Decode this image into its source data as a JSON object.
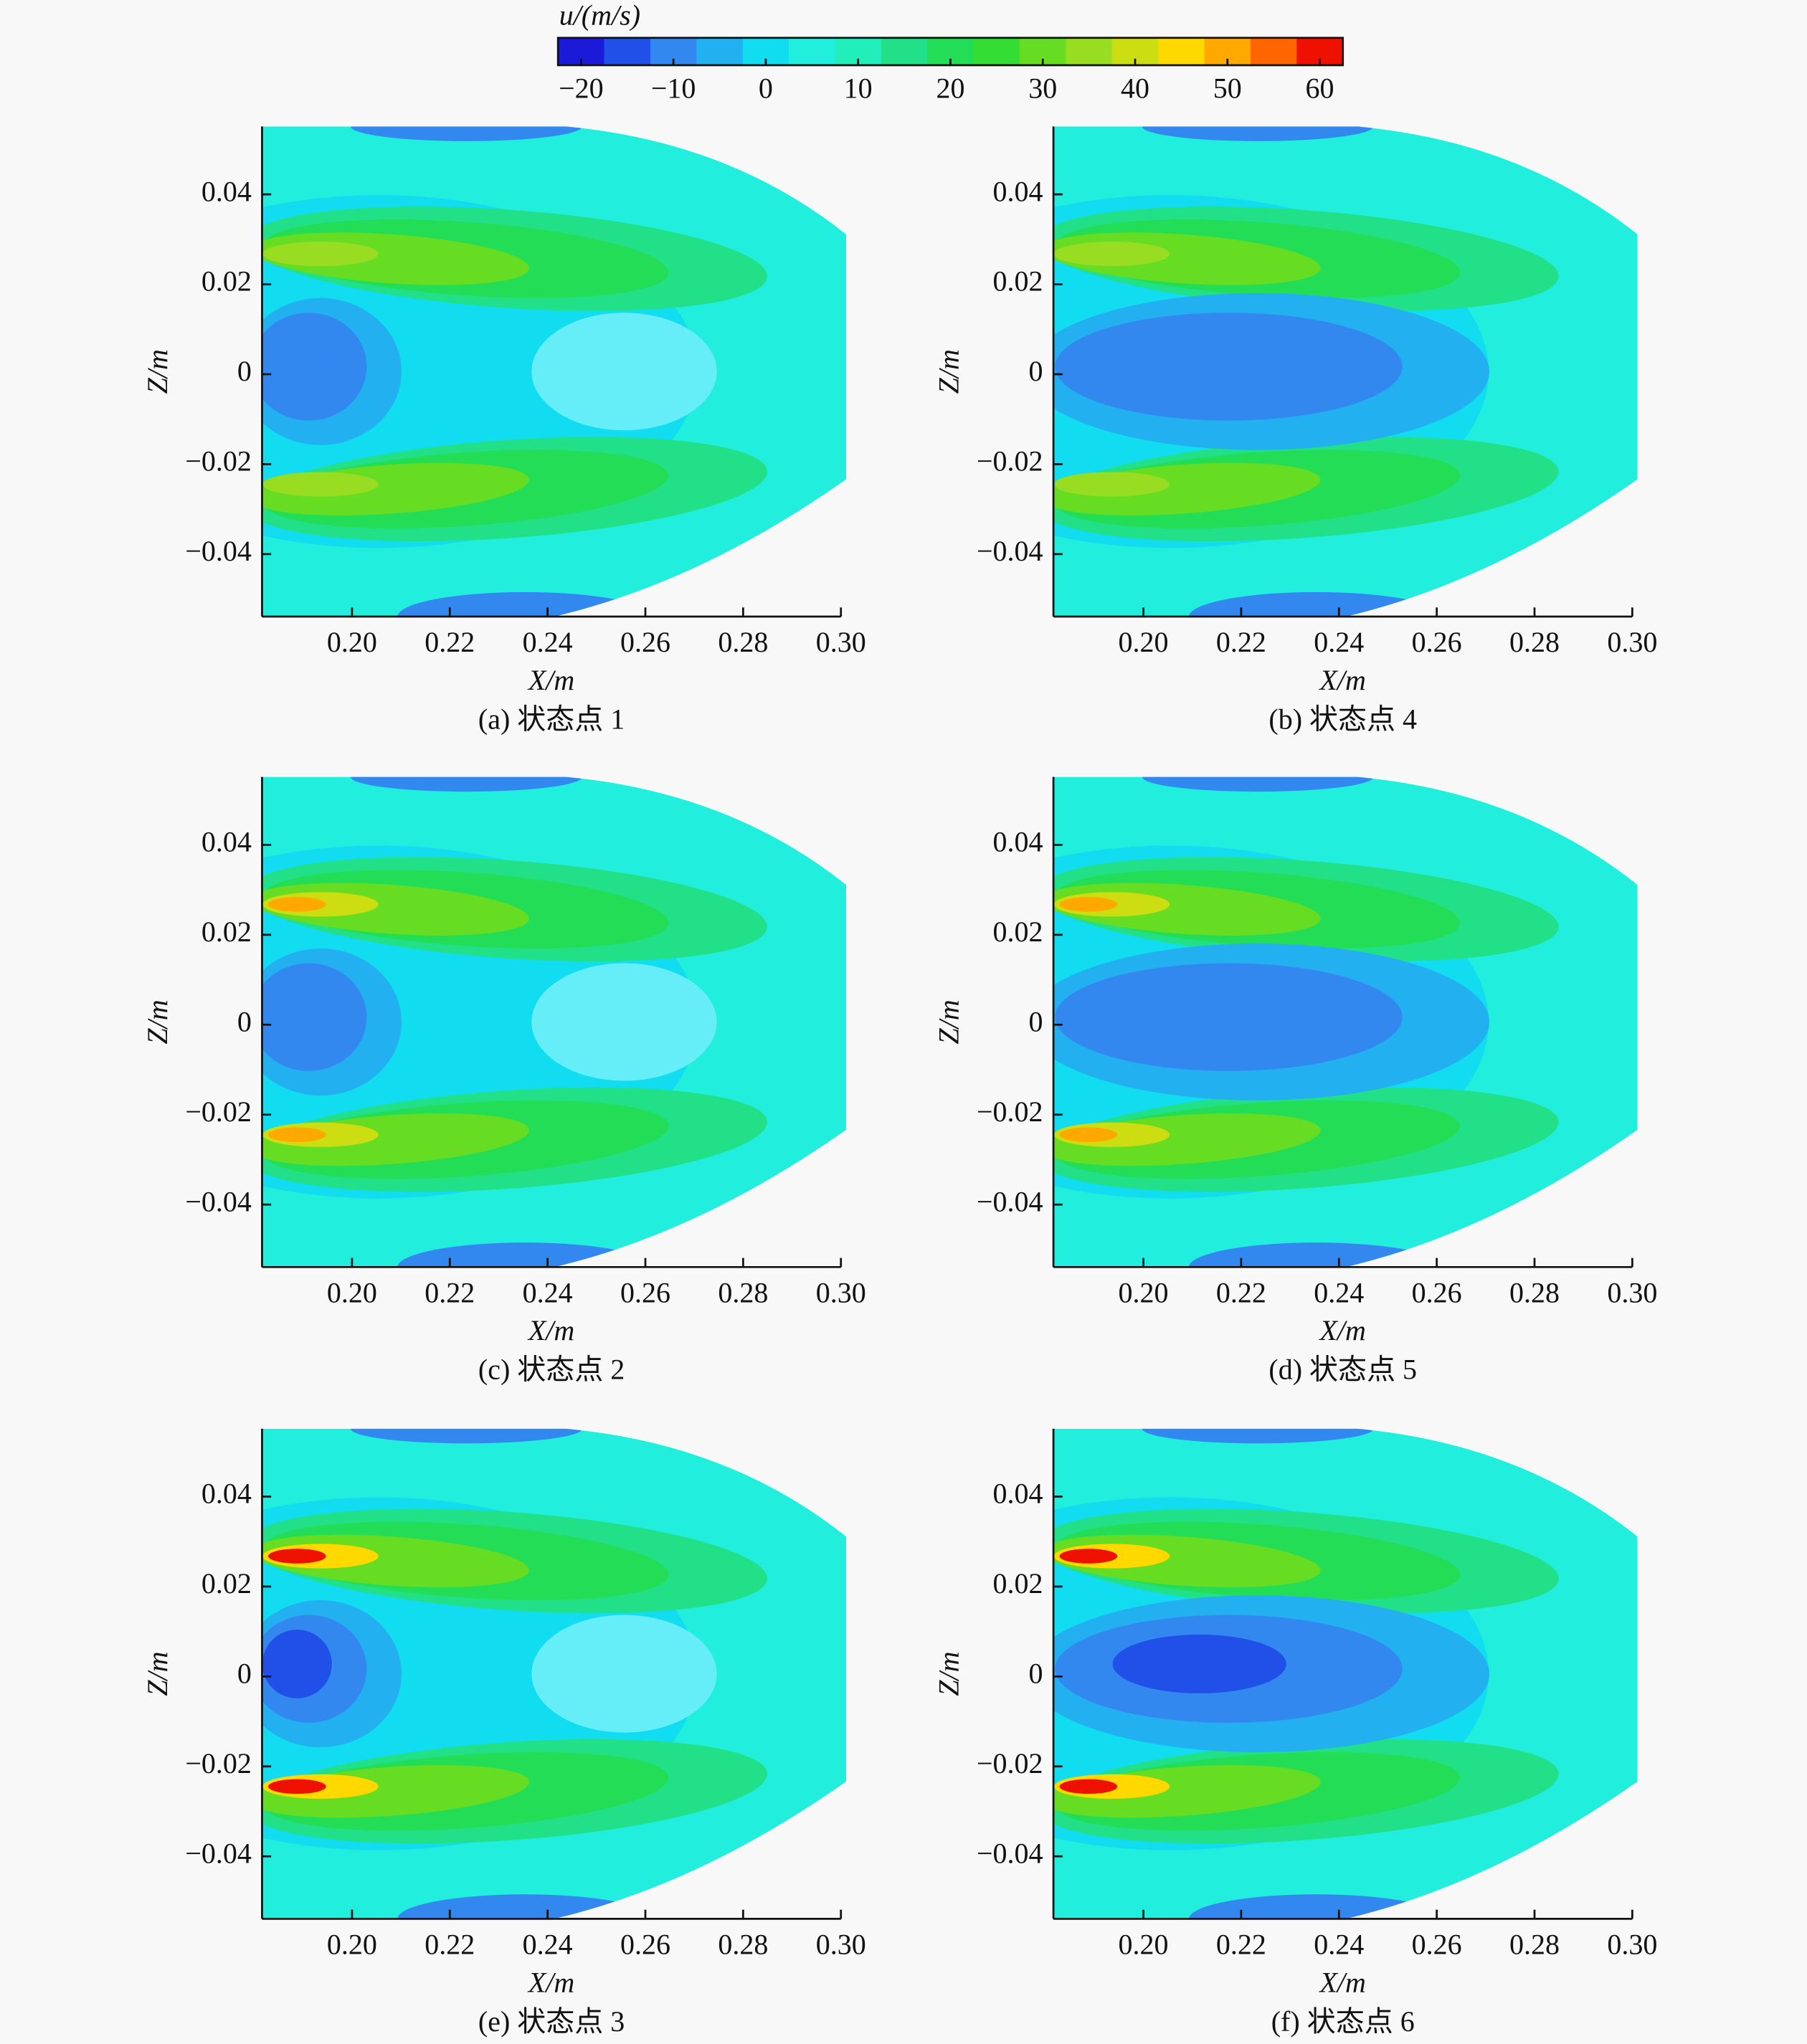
{
  "colorbar": {
    "label": "u/(m/s)",
    "lim": [
      -22.5,
      62.5
    ],
    "ticks": [
      {
        "value": -20,
        "label": "−20"
      },
      {
        "value": -10,
        "label": "−10"
      },
      0,
      10,
      20,
      30,
      40,
      50,
      60
    ],
    "colors": [
      "#1a1ad8",
      "#2050e8",
      "#3388f0",
      "#22b0f0",
      "#11dcf0",
      "#22eedd",
      "#22eebb",
      "#22e088",
      "#22dd55",
      "#33dd33",
      "#66dd22",
      "#99dd22",
      "#ccdd11",
      "#ffd800",
      "#ffa800",
      "#ff6600",
      "#ee1100"
    ]
  },
  "chart_data": [
    {
      "type": "contour",
      "caption": "(a) 状态点 1",
      "xlabel": "X/m",
      "ylabel": "Z/m",
      "xlim": [
        0.1816,
        0.3
      ],
      "ylim": [
        -0.0539,
        0.0551
      ],
      "xticks": [
        {
          "value": 0.2,
          "label": "0.20"
        },
        {
          "value": 0.22,
          "label": "0.22"
        },
        {
          "value": 0.24,
          "label": "0.24"
        },
        {
          "value": 0.26,
          "label": "0.26"
        },
        {
          "value": 0.28,
          "label": "0.28"
        },
        {
          "value": 0.3,
          "label": "0.30"
        }
      ],
      "yticks": [
        {
          "value": 0.04,
          "label": "0.04"
        },
        {
          "value": 0.02,
          "label": "0.02"
        },
        0,
        {
          "value": -0.02,
          "label": "−0.02"
        },
        {
          "value": -0.04,
          "label": "−0.04"
        }
      ]
    },
    {
      "type": "contour",
      "caption": "(b) 状态点 4",
      "xlabel": "X/m",
      "ylabel": "Z/m",
      "xlim": [
        0.1816,
        0.3
      ],
      "ylim": [
        -0.0539,
        0.0551
      ],
      "xticks": [
        {
          "value": 0.2,
          "label": "0.20"
        },
        {
          "value": 0.22,
          "label": "0.22"
        },
        {
          "value": 0.24,
          "label": "0.24"
        },
        {
          "value": 0.26,
          "label": "0.26"
        },
        {
          "value": 0.28,
          "label": "0.28"
        },
        {
          "value": 0.3,
          "label": "0.30"
        }
      ],
      "yticks": [
        {
          "value": 0.04,
          "label": "0.04"
        },
        {
          "value": 0.02,
          "label": "0.02"
        },
        0,
        {
          "value": -0.02,
          "label": "−0.02"
        },
        {
          "value": -0.04,
          "label": "−0.04"
        }
      ]
    },
    {
      "type": "contour",
      "caption": "(c) 状态点 2",
      "xlabel": "X/m",
      "ylabel": "Z/m",
      "xlim": [
        0.1816,
        0.3
      ],
      "ylim": [
        -0.0539,
        0.0551
      ],
      "xticks": [
        {
          "value": 0.2,
          "label": "0.20"
        },
        {
          "value": 0.22,
          "label": "0.22"
        },
        {
          "value": 0.24,
          "label": "0.24"
        },
        {
          "value": 0.26,
          "label": "0.26"
        },
        {
          "value": 0.28,
          "label": "0.28"
        },
        {
          "value": 0.3,
          "label": "0.30"
        }
      ],
      "yticks": [
        {
          "value": 0.04,
          "label": "0.04"
        },
        {
          "value": 0.02,
          "label": "0.02"
        },
        0,
        {
          "value": -0.02,
          "label": "−0.02"
        },
        {
          "value": -0.04,
          "label": "−0.04"
        }
      ]
    },
    {
      "type": "contour",
      "caption": "(d) 状态点 5",
      "xlabel": "X/m",
      "ylabel": "Z/m",
      "xlim": [
        0.1816,
        0.3
      ],
      "ylim": [
        -0.0539,
        0.0551
      ],
      "xticks": [
        {
          "value": 0.2,
          "label": "0.20"
        },
        {
          "value": 0.22,
          "label": "0.22"
        },
        {
          "value": 0.24,
          "label": "0.24"
        },
        {
          "value": 0.26,
          "label": "0.26"
        },
        {
          "value": 0.28,
          "label": "0.28"
        },
        {
          "value": 0.3,
          "label": "0.30"
        }
      ],
      "yticks": [
        {
          "value": 0.04,
          "label": "0.04"
        },
        {
          "value": 0.02,
          "label": "0.02"
        },
        0,
        {
          "value": -0.02,
          "label": "−0.02"
        },
        {
          "value": -0.04,
          "label": "−0.04"
        }
      ]
    },
    {
      "type": "contour",
      "caption": "(e) 状态点 3",
      "xlabel": "X/m",
      "ylabel": "Z/m",
      "xlim": [
        0.1816,
        0.3
      ],
      "ylim": [
        -0.0539,
        0.0551
      ],
      "xticks": [
        {
          "value": 0.2,
          "label": "0.20"
        },
        {
          "value": 0.22,
          "label": "0.22"
        },
        {
          "value": 0.24,
          "label": "0.24"
        },
        {
          "value": 0.26,
          "label": "0.26"
        },
        {
          "value": 0.28,
          "label": "0.28"
        },
        {
          "value": 0.3,
          "label": "0.30"
        }
      ],
      "yticks": [
        {
          "value": 0.04,
          "label": "0.04"
        },
        {
          "value": 0.02,
          "label": "0.02"
        },
        0,
        {
          "value": -0.02,
          "label": "−0.02"
        },
        {
          "value": -0.04,
          "label": "−0.04"
        }
      ]
    },
    {
      "type": "contour",
      "caption": "(f) 状态点 6",
      "xlabel": "X/m",
      "ylabel": "Z/m",
      "xlim": [
        0.1816,
        0.3
      ],
      "ylim": [
        -0.0539,
        0.0551
      ],
      "xticks": [
        {
          "value": 0.2,
          "label": "0.20"
        },
        {
          "value": 0.22,
          "label": "0.22"
        },
        {
          "value": 0.24,
          "label": "0.24"
        },
        {
          "value": 0.26,
          "label": "0.26"
        },
        {
          "value": 0.28,
          "label": "0.28"
        },
        {
          "value": 0.3,
          "label": "0.30"
        }
      ],
      "yticks": [
        {
          "value": 0.04,
          "label": "0.04"
        },
        {
          "value": 0.02,
          "label": "0.02"
        },
        0,
        {
          "value": -0.02,
          "label": "−0.02"
        },
        {
          "value": -0.04,
          "label": "−0.04"
        }
      ]
    }
  ]
}
